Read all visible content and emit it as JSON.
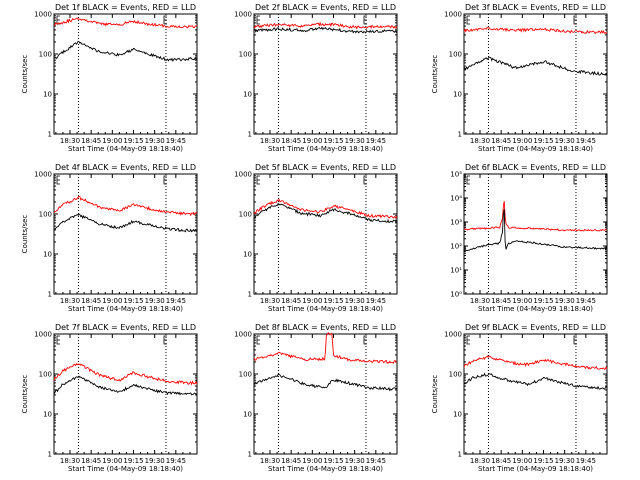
{
  "figure": {
    "background": "#ffffff",
    "event_color": "#000000",
    "lld_color": "#ff0000"
  },
  "chart_data": [
    {
      "type": "line",
      "panel": 1,
      "title": "Det 1f BLACK = Events, RED = LLD",
      "xlabel": "Start Time (04-May-09 18:18:40)",
      "ylabel": "Counts/sec",
      "ylog": true,
      "ylim": [
        1,
        1000
      ],
      "yticks": [
        "1",
        "10",
        "100",
        "1000"
      ],
      "xticks": [
        "18:30",
        "18:45",
        "19:00",
        "19:15",
        "19:30",
        "19:45"
      ],
      "vlines": [
        "18:36",
        "19:38"
      ],
      "x_anchor": [
        "18:18",
        "18:25",
        "18:36",
        "18:52",
        "19:05",
        "19:15",
        "19:25",
        "19:40",
        "19:55"
      ],
      "series": [
        {
          "role": "lld",
          "y": [
            550,
            620,
            780,
            560,
            540,
            660,
            560,
            490,
            480
          ]
        },
        {
          "role": "events",
          "y": [
            70,
            110,
            200,
            110,
            95,
            130,
            100,
            70,
            75
          ]
        }
      ]
    },
    {
      "type": "line",
      "panel": 2,
      "title": "Det 2f BLACK = Events, RED = LLD",
      "xlabel": "Start Time (04-May-09 18:18:40)",
      "ylabel": "",
      "ylog": true,
      "ylim": [
        1,
        1000
      ],
      "yticks": [
        "1",
        "10",
        "100",
        "1000"
      ],
      "xticks": [
        "18:30",
        "18:45",
        "19:00",
        "19:15",
        "19:30",
        "19:45"
      ],
      "vlines": [
        "18:36",
        "19:38"
      ],
      "x_anchor": [
        "18:18",
        "18:35",
        "18:55",
        "19:05",
        "19:15",
        "19:30",
        "19:55"
      ],
      "series": [
        {
          "role": "lld",
          "y": [
            480,
            540,
            500,
            560,
            540,
            470,
            480
          ]
        },
        {
          "role": "events",
          "y": [
            380,
            420,
            390,
            430,
            410,
            360,
            370
          ]
        }
      ]
    },
    {
      "type": "line",
      "panel": 3,
      "title": "Det 3f BLACK = Events, RED = LLD",
      "xlabel": "Start Time (04-May-09 18:18:40)",
      "ylabel": "Counts/sec",
      "ylog": true,
      "ylim": [
        1,
        1000
      ],
      "yticks": [
        "1",
        "10",
        "100",
        "1000"
      ],
      "xticks": [
        "18:30",
        "18:45",
        "19:00",
        "19:15",
        "19:30",
        "19:45"
      ],
      "vlines": [
        "18:36",
        "19:38"
      ],
      "x_anchor": [
        "18:18",
        "18:36",
        "18:55",
        "19:15",
        "19:35",
        "19:55"
      ],
      "series": [
        {
          "role": "lld",
          "y": [
            380,
            430,
            390,
            410,
            360,
            350
          ]
        },
        {
          "role": "events",
          "y": [
            40,
            80,
            45,
            65,
            38,
            32
          ]
        }
      ]
    },
    {
      "type": "line",
      "panel": 4,
      "title": "Det 4f BLACK = Events, RED = LLD",
      "xlabel": "Start Time (04-May-09 18:18:40)",
      "ylabel": "Counts/sec",
      "ylog": true,
      "ylim": [
        1,
        1000
      ],
      "yticks": [
        "1",
        "10",
        "100",
        "1000"
      ],
      "xticks": [
        "18:30",
        "18:45",
        "19:00",
        "19:15",
        "19:30",
        "19:45"
      ],
      "vlines": [
        "18:36",
        "19:38"
      ],
      "x_anchor": [
        "18:18",
        "18:25",
        "18:36",
        "18:52",
        "19:05",
        "19:15",
        "19:25",
        "19:40",
        "19:55"
      ],
      "series": [
        {
          "role": "lld",
          "y": [
            110,
            170,
            260,
            140,
            120,
            170,
            140,
            110,
            100
          ]
        },
        {
          "role": "events",
          "y": [
            40,
            65,
            95,
            55,
            45,
            65,
            55,
            42,
            38
          ]
        }
      ]
    },
    {
      "type": "line",
      "panel": 5,
      "title": "Det 5f BLACK = Events, RED = LLD",
      "xlabel": "Start Time (04-May-09 18:18:40)",
      "ylabel": "",
      "ylog": true,
      "ylim": [
        1,
        1000
      ],
      "yticks": [
        "1",
        "10",
        "100",
        "1000"
      ],
      "xticks": [
        "18:30",
        "18:45",
        "19:00",
        "19:15",
        "19:30",
        "19:45"
      ],
      "vlines": [
        "18:36",
        "19:38"
      ],
      "x_anchor": [
        "18:18",
        "18:25",
        "18:36",
        "18:52",
        "19:05",
        "19:15",
        "19:25",
        "19:40",
        "19:55"
      ],
      "series": [
        {
          "role": "lld",
          "y": [
            100,
            150,
            220,
            130,
            110,
            160,
            130,
            90,
            85
          ]
        },
        {
          "role": "events",
          "y": [
            75,
            120,
            180,
            105,
            90,
            130,
            105,
            72,
            65
          ]
        }
      ]
    },
    {
      "type": "line",
      "panel": 6,
      "title": "Det 6f BLACK = Events, RED = LLD",
      "xlabel": "Start Time (04-May-09 18:18:40)",
      "ylabel": "",
      "ylog": true,
      "ylim": [
        1,
        100000
      ],
      "yticks": [
        "10⁰",
        "10¹",
        "10²",
        "10³",
        "10⁴",
        "10⁵"
      ],
      "xticks": [
        "18:30",
        "18:45",
        "19:00",
        "19:15",
        "19:30",
        "19:45"
      ],
      "vlines": [
        "18:36",
        "19:38"
      ],
      "x_anchor": [
        "18:18",
        "18:35",
        "18:44",
        "18:46",
        "18:47",
        "18:48",
        "18:50",
        "18:55",
        "19:10",
        "19:30",
        "19:55"
      ],
      "series": [
        {
          "role": "lld",
          "y": [
            500,
            550,
            600,
            1500,
            12000,
            1000,
            600,
            580,
            520,
            460,
            450
          ]
        },
        {
          "role": "events",
          "y": [
            60,
            110,
            130,
            400,
            7000,
            60,
            120,
            160,
            130,
            90,
            80
          ]
        }
      ]
    },
    {
      "type": "line",
      "panel": 7,
      "title": "Det 7f BLACK = Events, RED = LLD",
      "xlabel": "Start Time (04-May-09 18:18:40)",
      "ylabel": "Counts/sec",
      "ylog": true,
      "ylim": [
        1,
        1000
      ],
      "yticks": [
        "1",
        "10",
        "100",
        "1000"
      ],
      "xticks": [
        "18:30",
        "18:45",
        "19:00",
        "19:15",
        "19:30",
        "19:45"
      ],
      "vlines": [
        "18:36",
        "19:38"
      ],
      "x_anchor": [
        "18:18",
        "18:25",
        "18:36",
        "18:52",
        "19:05",
        "19:15",
        "19:25",
        "19:40",
        "19:55"
      ],
      "series": [
        {
          "role": "lld",
          "y": [
            70,
            120,
            180,
            90,
            70,
            110,
            85,
            65,
            60
          ]
        },
        {
          "role": "events",
          "y": [
            30,
            55,
            85,
            45,
            35,
            55,
            42,
            33,
            32
          ]
        }
      ]
    },
    {
      "type": "line",
      "panel": 8,
      "title": "Det 8f BLACK = Events, RED = LLD",
      "xlabel": "Start Time (04-May-09 18:18:40)",
      "ylabel": "",
      "ylog": true,
      "ylim": [
        1,
        1000
      ],
      "yticks": [
        "1",
        "10",
        "100",
        "1000"
      ],
      "xticks": [
        "18:30",
        "18:45",
        "19:00",
        "19:15",
        "19:30",
        "19:45"
      ],
      "vlines": [
        "18:36",
        "19:38"
      ],
      "x_anchor": [
        "18:18",
        "18:36",
        "18:55",
        "19:09",
        "19:10",
        "19:14",
        "19:15",
        "19:25",
        "19:40",
        "19:55"
      ],
      "series": [
        {
          "role": "lld",
          "y": [
            230,
            330,
            230,
            240,
            1000,
            1000,
            290,
            230,
            210,
            200
          ]
        },
        {
          "role": "events",
          "y": [
            55,
            95,
            55,
            45,
            45,
            70,
            70,
            60,
            45,
            42
          ]
        }
      ]
    },
    {
      "type": "line",
      "panel": 9,
      "title": "Det 9f BLACK = Events, RED = LLD",
      "xlabel": "Start Time (04-May-09 18:18:40)",
      "ylabel": "Counts/sec",
      "ylog": true,
      "ylim": [
        1,
        1000
      ],
      "yticks": [
        "1",
        "10",
        "100",
        "1000"
      ],
      "xticks": [
        "18:30",
        "18:45",
        "19:00",
        "19:15",
        "19:30",
        "19:45"
      ],
      "vlines": [
        "18:36",
        "19:38"
      ],
      "x_anchor": [
        "18:18",
        "18:25",
        "18:36",
        "18:52",
        "19:05",
        "19:15",
        "19:25",
        "19:40",
        "19:55"
      ],
      "series": [
        {
          "role": "lld",
          "y": [
            150,
            210,
            270,
            190,
            170,
            230,
            190,
            150,
            140
          ]
        },
        {
          "role": "events",
          "y": [
            55,
            80,
            100,
            65,
            55,
            80,
            65,
            48,
            45
          ]
        }
      ]
    }
  ]
}
